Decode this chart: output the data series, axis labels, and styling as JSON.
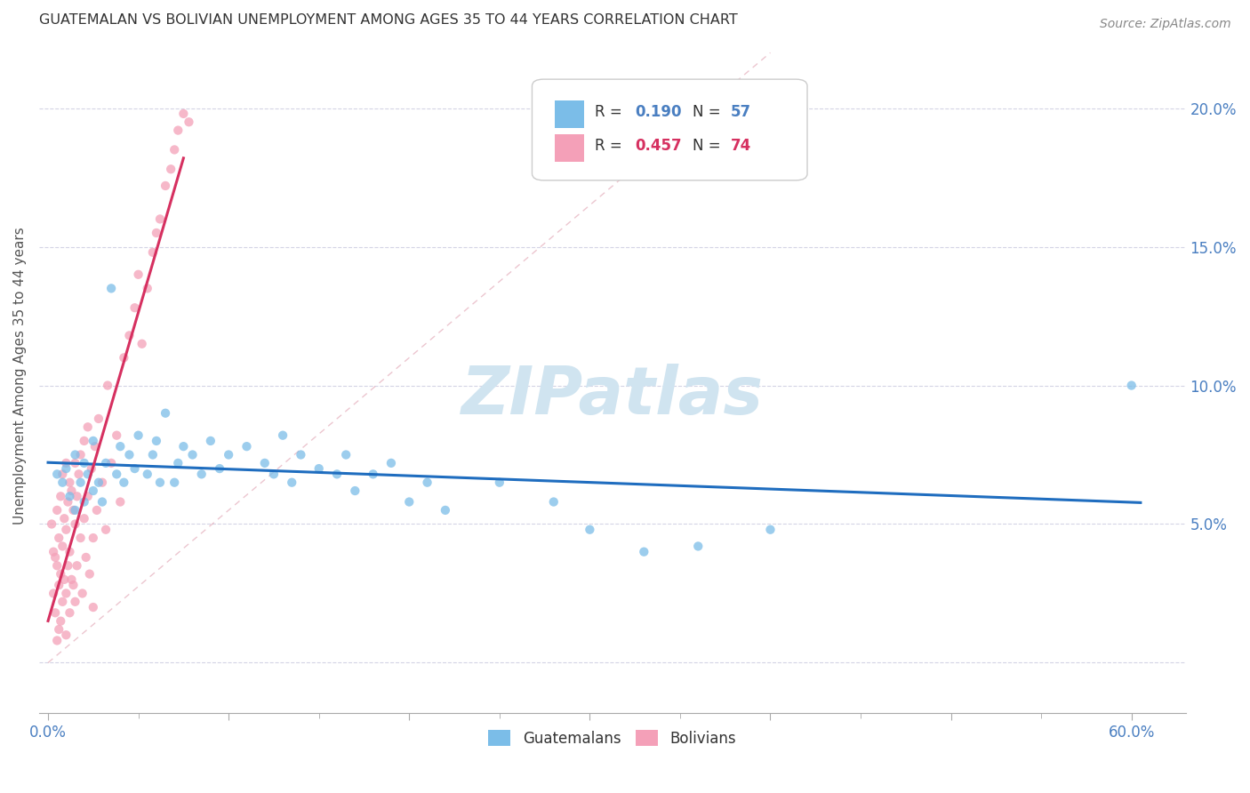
{
  "title": "GUATEMALAN VS BOLIVIAN UNEMPLOYMENT AMONG AGES 35 TO 44 YEARS CORRELATION CHART",
  "source": "Source: ZipAtlas.com",
  "ylabel": "Unemployment Among Ages 35 to 44 years",
  "yticks": [
    0.0,
    0.05,
    0.1,
    0.15,
    0.2
  ],
  "ytick_labels": [
    "",
    "5.0%",
    "10.0%",
    "15.0%",
    "20.0%"
  ],
  "xlim": [
    -0.005,
    0.63
  ],
  "ylim": [
    -0.018,
    0.225
  ],
  "legend_blue_R": "0.190",
  "legend_blue_N": "57",
  "legend_pink_R": "0.457",
  "legend_pink_N": "74",
  "blue_color": "#7bbde8",
  "pink_color": "#f4a0b8",
  "blue_line_color": "#1f6dbf",
  "pink_line_color": "#d63060",
  "dash_color": "#e8b0c0",
  "watermark_color": "#d0e4f0",
  "guatemalan_x": [
    0.005,
    0.008,
    0.01,
    0.012,
    0.015,
    0.015,
    0.018,
    0.02,
    0.02,
    0.022,
    0.025,
    0.025,
    0.028,
    0.03,
    0.032,
    0.035,
    0.038,
    0.04,
    0.042,
    0.045,
    0.048,
    0.05,
    0.055,
    0.058,
    0.06,
    0.062,
    0.065,
    0.07,
    0.072,
    0.075,
    0.08,
    0.085,
    0.09,
    0.095,
    0.1,
    0.11,
    0.12,
    0.125,
    0.13,
    0.135,
    0.14,
    0.15,
    0.16,
    0.165,
    0.17,
    0.18,
    0.19,
    0.2,
    0.21,
    0.22,
    0.25,
    0.28,
    0.3,
    0.33,
    0.36,
    0.4,
    0.6
  ],
  "guatemalan_y": [
    0.068,
    0.065,
    0.07,
    0.06,
    0.055,
    0.075,
    0.065,
    0.072,
    0.058,
    0.068,
    0.062,
    0.08,
    0.065,
    0.058,
    0.072,
    0.135,
    0.068,
    0.078,
    0.065,
    0.075,
    0.07,
    0.082,
    0.068,
    0.075,
    0.08,
    0.065,
    0.09,
    0.065,
    0.072,
    0.078,
    0.075,
    0.068,
    0.08,
    0.07,
    0.075,
    0.078,
    0.072,
    0.068,
    0.082,
    0.065,
    0.075,
    0.07,
    0.068,
    0.075,
    0.062,
    0.068,
    0.072,
    0.058,
    0.065,
    0.055,
    0.065,
    0.058,
    0.048,
    0.04,
    0.042,
    0.048,
    0.1
  ],
  "bolivian_x": [
    0.002,
    0.003,
    0.003,
    0.004,
    0.004,
    0.005,
    0.005,
    0.005,
    0.006,
    0.006,
    0.006,
    0.007,
    0.007,
    0.007,
    0.008,
    0.008,
    0.008,
    0.009,
    0.009,
    0.01,
    0.01,
    0.01,
    0.01,
    0.011,
    0.011,
    0.012,
    0.012,
    0.012,
    0.013,
    0.013,
    0.014,
    0.014,
    0.015,
    0.015,
    0.015,
    0.016,
    0.016,
    0.017,
    0.018,
    0.018,
    0.019,
    0.02,
    0.02,
    0.021,
    0.022,
    0.022,
    0.023,
    0.024,
    0.025,
    0.025,
    0.026,
    0.027,
    0.028,
    0.03,
    0.032,
    0.033,
    0.035,
    0.038,
    0.04,
    0.042,
    0.045,
    0.048,
    0.05,
    0.052,
    0.055,
    0.058,
    0.06,
    0.062,
    0.065,
    0.068,
    0.07,
    0.072,
    0.075,
    0.078
  ],
  "bolivian_y": [
    0.05,
    0.04,
    0.025,
    0.038,
    0.018,
    0.055,
    0.035,
    0.008,
    0.045,
    0.028,
    0.012,
    0.06,
    0.032,
    0.015,
    0.068,
    0.042,
    0.022,
    0.052,
    0.03,
    0.072,
    0.048,
    0.025,
    0.01,
    0.058,
    0.035,
    0.065,
    0.04,
    0.018,
    0.062,
    0.03,
    0.055,
    0.028,
    0.072,
    0.05,
    0.022,
    0.06,
    0.035,
    0.068,
    0.075,
    0.045,
    0.025,
    0.08,
    0.052,
    0.038,
    0.085,
    0.06,
    0.032,
    0.07,
    0.045,
    0.02,
    0.078,
    0.055,
    0.088,
    0.065,
    0.048,
    0.1,
    0.072,
    0.082,
    0.058,
    0.11,
    0.118,
    0.128,
    0.14,
    0.115,
    0.135,
    0.148,
    0.155,
    0.16,
    0.172,
    0.178,
    0.185,
    0.192,
    0.198,
    0.195
  ]
}
